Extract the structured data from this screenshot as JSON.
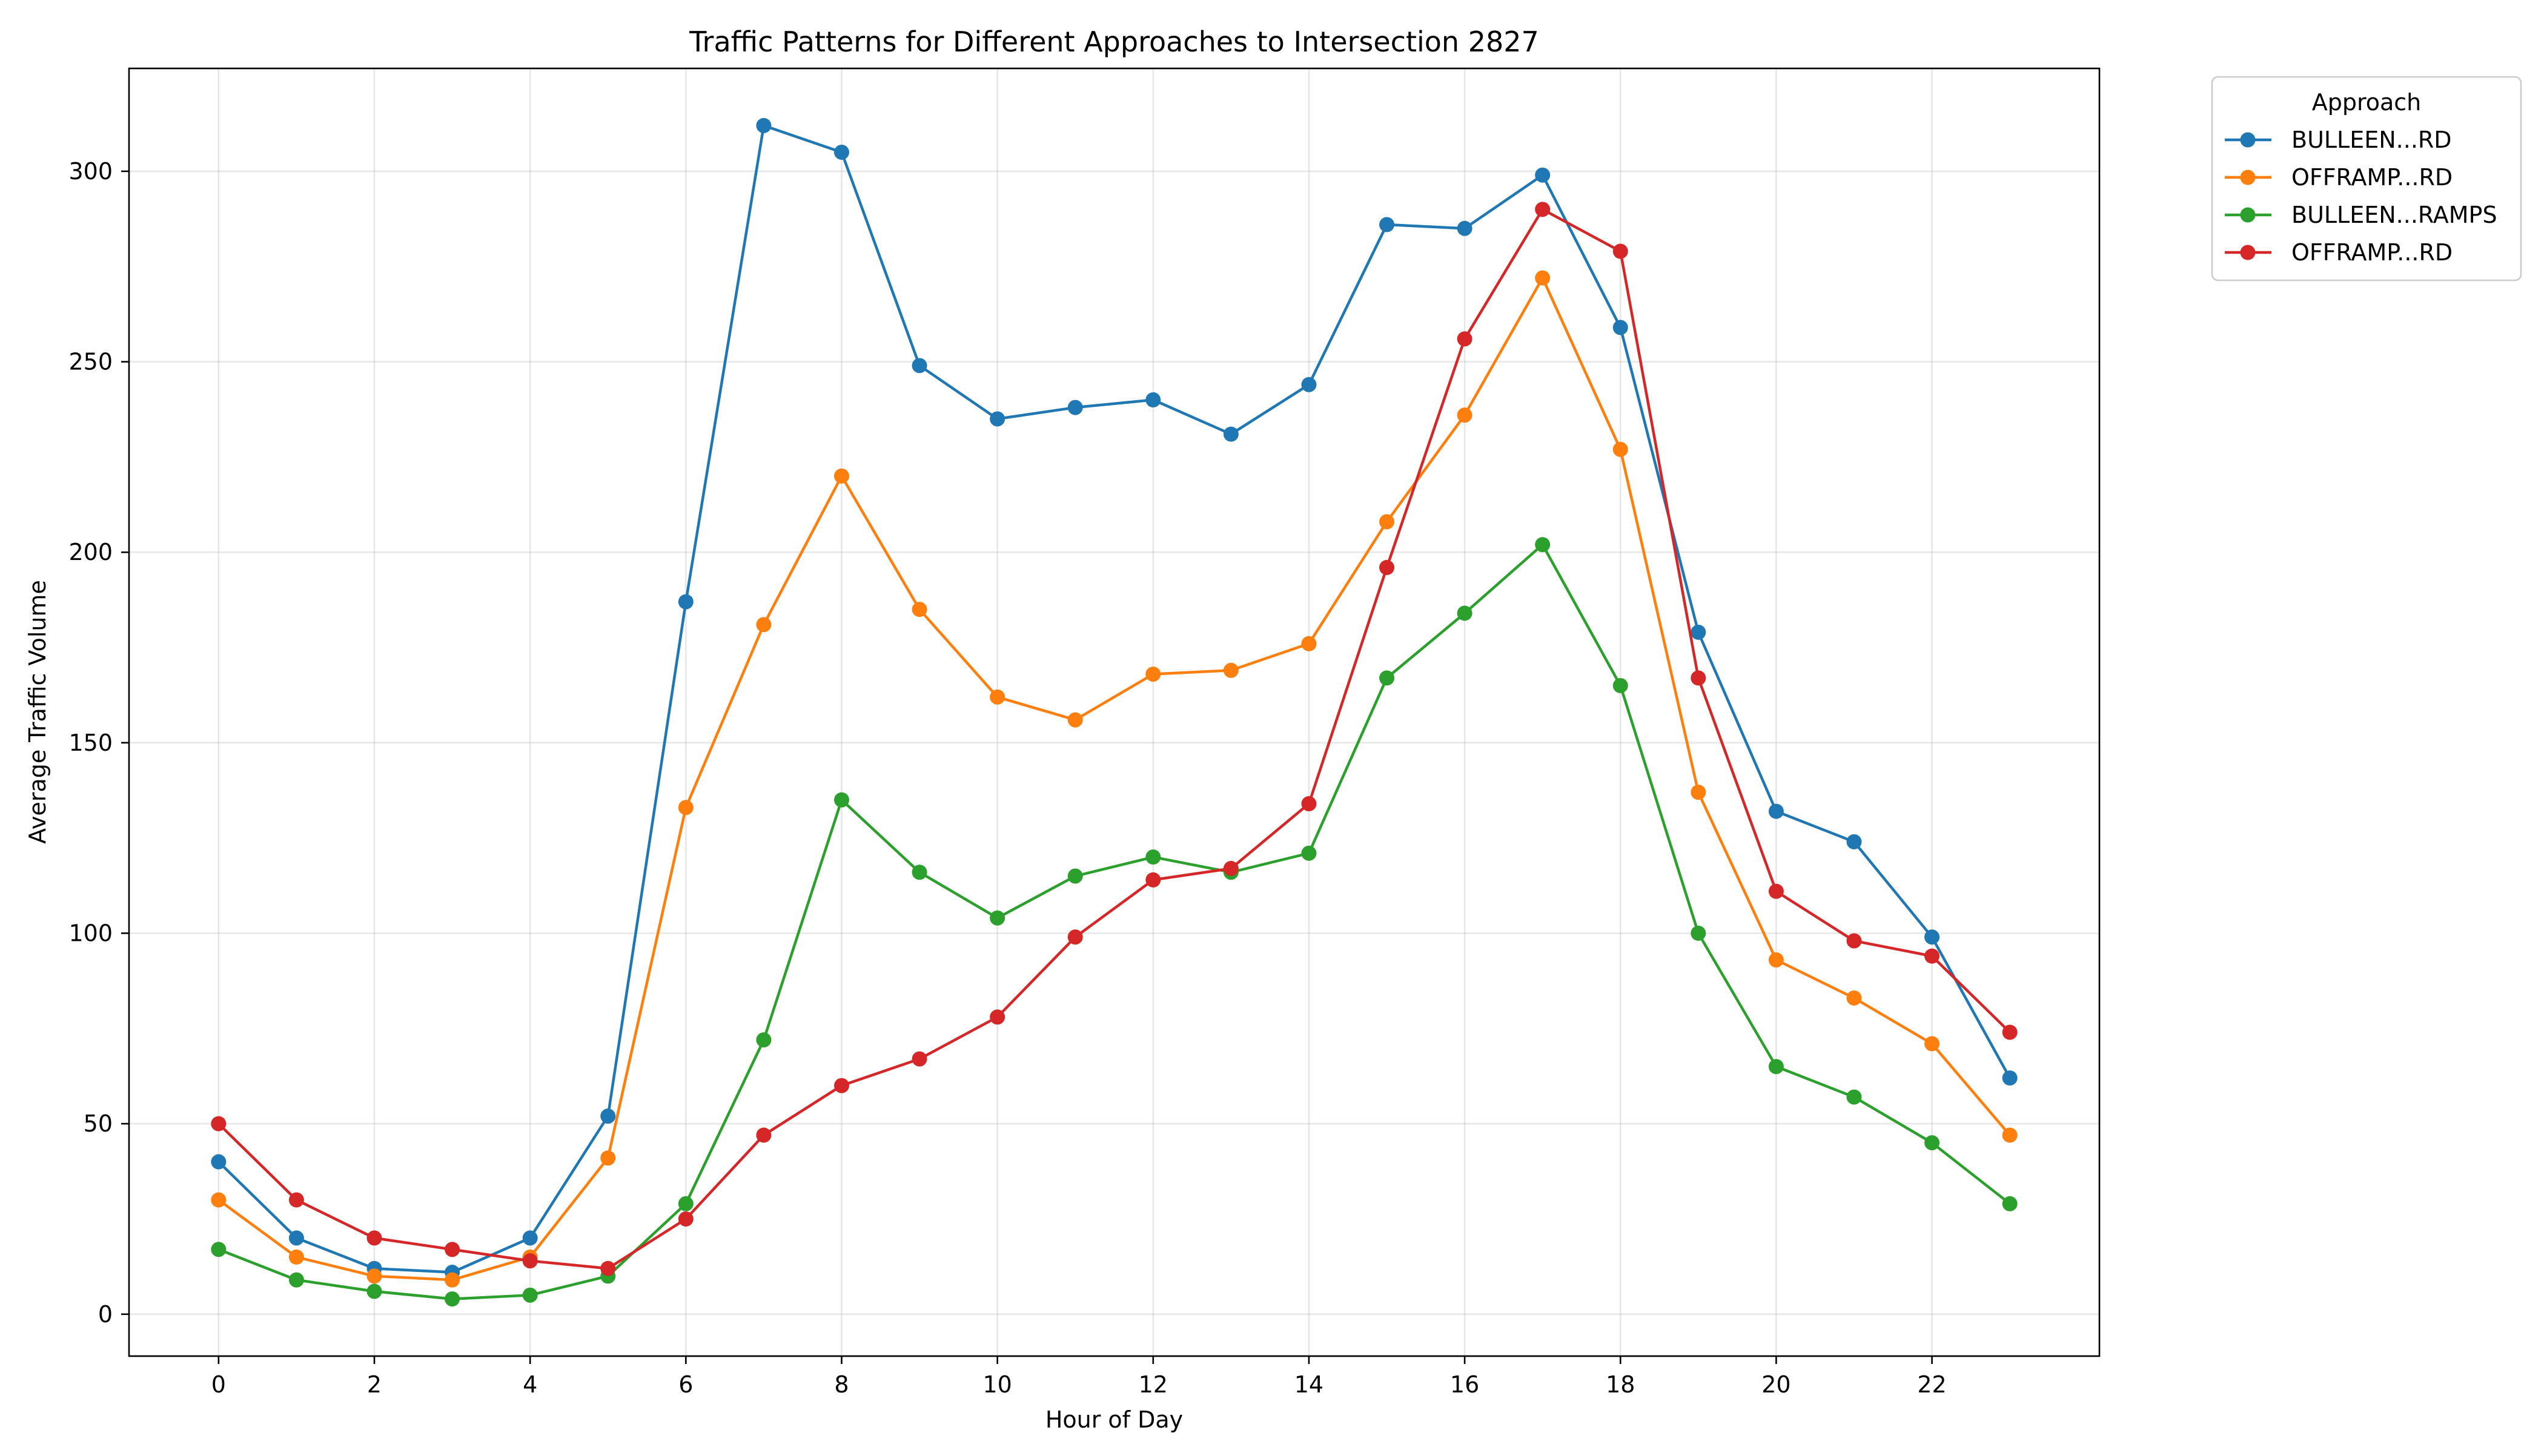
{
  "chart_data": {
    "type": "line",
    "title": "Traffic Patterns for Different Approaches to Intersection 2827",
    "xlabel": "Hour of Day",
    "ylabel": "Average Traffic Volume",
    "x": [
      0,
      1,
      2,
      3,
      4,
      5,
      6,
      7,
      8,
      9,
      10,
      11,
      12,
      13,
      14,
      15,
      16,
      17,
      18,
      19,
      20,
      21,
      22,
      23
    ],
    "xlim": [
      -1.15,
      24.15
    ],
    "ylim": [
      -11,
      327
    ],
    "xticks": [
      0,
      2,
      4,
      6,
      8,
      10,
      12,
      14,
      16,
      18,
      20,
      22
    ],
    "yticks": [
      0,
      50,
      100,
      150,
      200,
      250,
      300
    ],
    "grid": true,
    "legend": {
      "title": "Approach",
      "placement": "outside upper right"
    },
    "series": [
      {
        "name": "BULLEEN...RD",
        "color": "#1f77b4",
        "values": [
          40,
          20,
          12,
          11,
          20,
          52,
          187,
          312,
          305,
          249,
          235,
          238,
          240,
          231,
          244,
          286,
          285,
          299,
          259,
          179,
          132,
          124,
          99,
          62
        ]
      },
      {
        "name": "OFFRAMP...RD",
        "color": "#ff7f0e",
        "values": [
          30,
          15,
          10,
          9,
          15,
          41,
          133,
          181,
          220,
          185,
          162,
          156,
          168,
          169,
          176,
          208,
          236,
          272,
          227,
          137,
          93,
          83,
          71,
          47
        ]
      },
      {
        "name": "BULLEEN...RAMPS",
        "color": "#2ca02c",
        "values": [
          17,
          9,
          6,
          4,
          5,
          10,
          29,
          72,
          135,
          116,
          104,
          115,
          120,
          116,
          121,
          167,
          184,
          202,
          165,
          100,
          65,
          57,
          45,
          29
        ]
      },
      {
        "name": "OFFRAMP...RD",
        "color": "#d62728",
        "values": [
          50,
          30,
          20,
          17,
          14,
          12,
          25,
          47,
          60,
          67,
          78,
          99,
          114,
          117,
          134,
          196,
          256,
          290,
          279,
          167,
          111,
          98,
          94,
          74
        ]
      }
    ]
  }
}
